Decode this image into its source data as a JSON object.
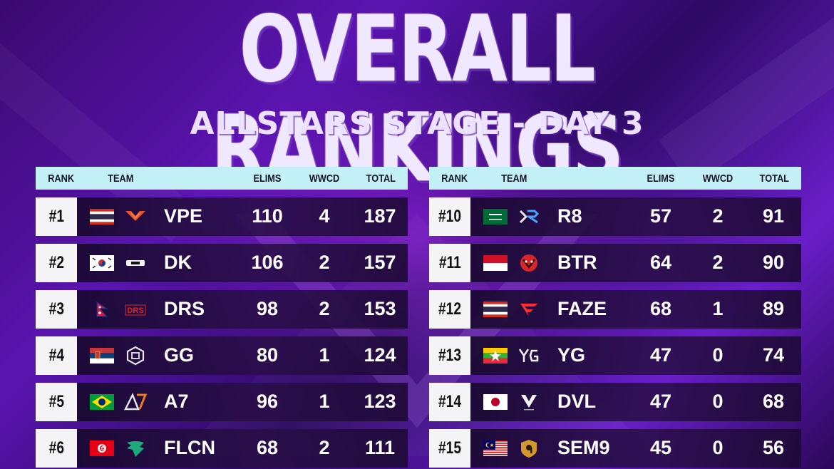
{
  "title": "OVERALL RANKINGS",
  "subtitle": "ALLSTARS STAGE - DAY 3",
  "columns": {
    "rank": "RANK",
    "team": "TEAM",
    "elims": "ELIMS",
    "wwcd": "WWCD",
    "total": "TOTAL"
  },
  "colors": {
    "header_bg": "#c3f0f7",
    "rank_box_bg": "#f4f4f6",
    "row_bg": "#1c0c36",
    "accent": "#9b30ff"
  },
  "left_rows": [
    {
      "rank": "#1",
      "flag": "thailand-flag",
      "logo": "vpe-logo",
      "team": "VPE",
      "elims": "110",
      "wwcd": "4",
      "total": "187"
    },
    {
      "rank": "#2",
      "flag": "south-korea-flag",
      "logo": "dk-logo",
      "team": "DK",
      "elims": "106",
      "wwcd": "2",
      "total": "157"
    },
    {
      "rank": "#3",
      "flag": "nepal-flag",
      "logo": "drs-logo",
      "team": "DRS",
      "elims": "98",
      "wwcd": "2",
      "total": "153"
    },
    {
      "rank": "#4",
      "flag": "serbia-flag",
      "logo": "gg-logo",
      "team": "GG",
      "elims": "80",
      "wwcd": "1",
      "total": "124"
    },
    {
      "rank": "#5",
      "flag": "brazil-flag",
      "logo": "a7-logo",
      "team": "A7",
      "elims": "96",
      "wwcd": "1",
      "total": "123"
    },
    {
      "rank": "#6",
      "flag": "tunisia-flag",
      "logo": "flcn-logo",
      "team": "FLCN",
      "elims": "68",
      "wwcd": "2",
      "total": "111"
    }
  ],
  "right_rows": [
    {
      "rank": "#10",
      "flag": "saudi-arabia-flag",
      "logo": "r8-logo",
      "team": "R8",
      "elims": "57",
      "wwcd": "2",
      "total": "91"
    },
    {
      "rank": "#11",
      "flag": "indonesia-flag",
      "logo": "btr-logo",
      "team": "BTR",
      "elims": "64",
      "wwcd": "2",
      "total": "90"
    },
    {
      "rank": "#12",
      "flag": "thailand-flag",
      "logo": "faze-logo",
      "team": "FAZE",
      "elims": "68",
      "wwcd": "1",
      "total": "89"
    },
    {
      "rank": "#13",
      "flag": "myanmar-flag",
      "logo": "yg-logo",
      "team": "YG",
      "elims": "47",
      "wwcd": "0",
      "total": "74"
    },
    {
      "rank": "#14",
      "flag": "japan-flag",
      "logo": "dvl-logo",
      "team": "DVL",
      "elims": "47",
      "wwcd": "0",
      "total": "68"
    },
    {
      "rank": "#15",
      "flag": "malaysia-flag",
      "logo": "sem9-logo",
      "team": "SEM9",
      "elims": "45",
      "wwcd": "0",
      "total": "56"
    }
  ]
}
